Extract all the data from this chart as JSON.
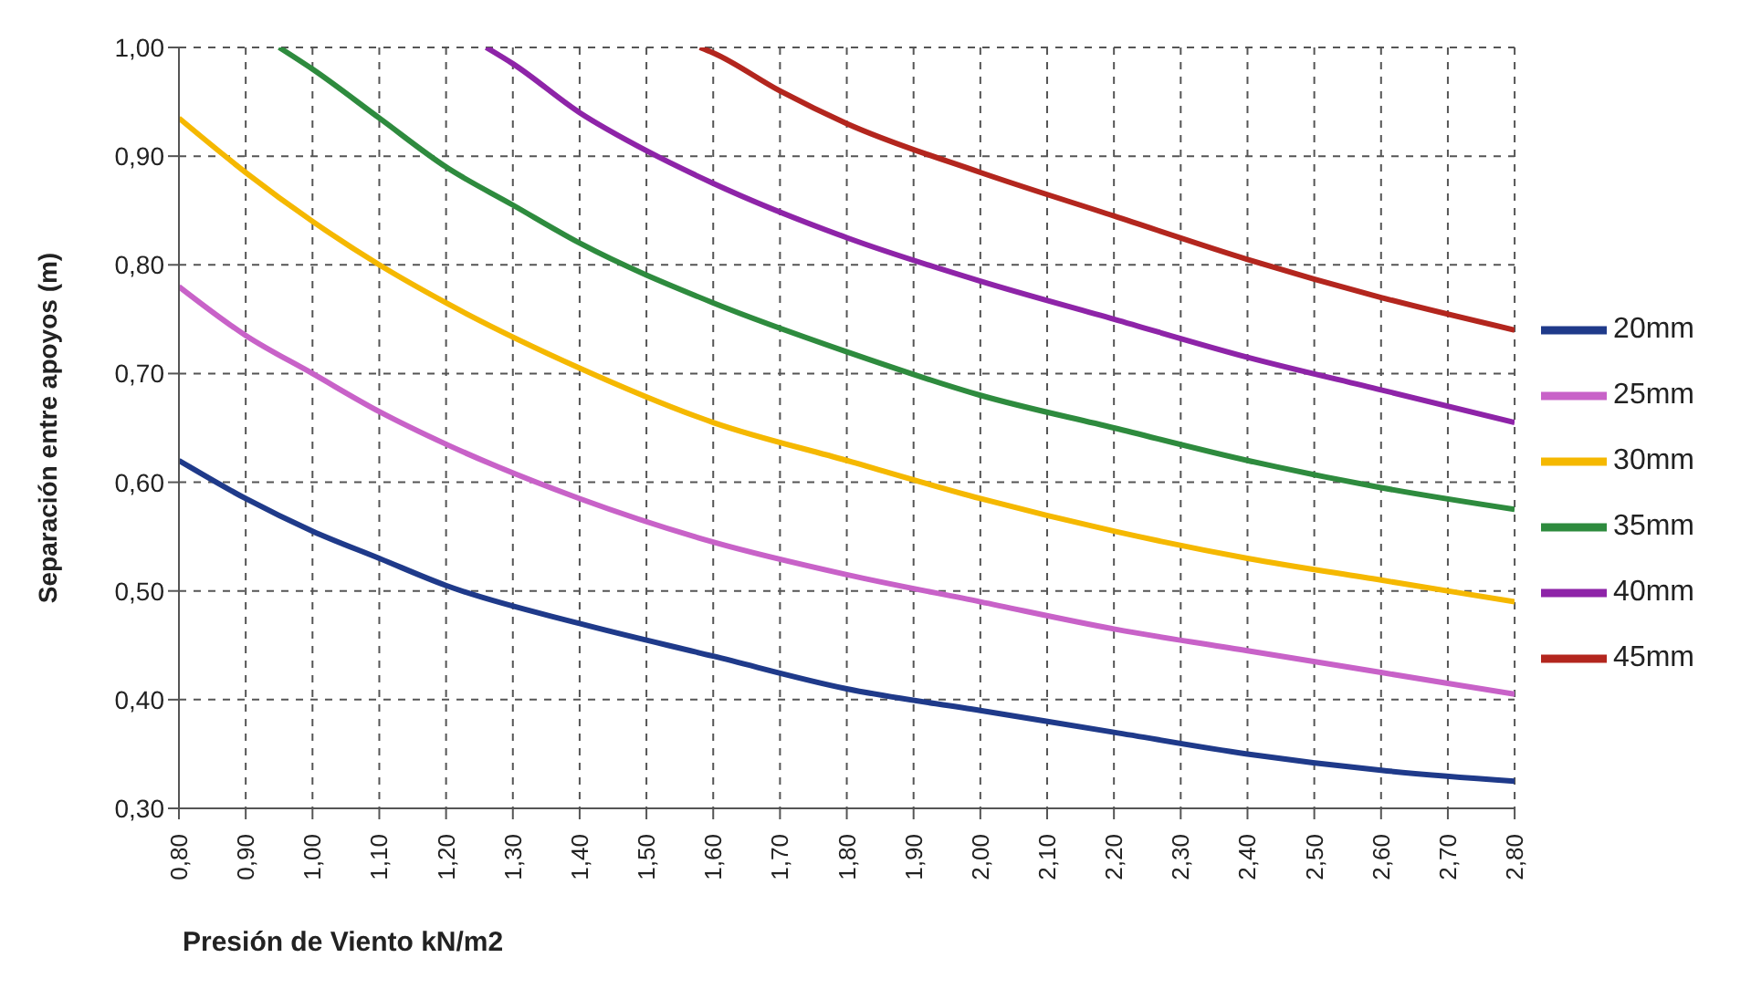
{
  "chart_data": {
    "type": "line",
    "xlabel": "Presión de Viento kN/m2",
    "ylabel": "Separación entre apoyos (m)",
    "xlim": [
      0.8,
      2.8
    ],
    "ylim": [
      0.3,
      1.0
    ],
    "xticks": [
      {
        "value": 0.8,
        "label": "0,80"
      },
      {
        "value": 0.9,
        "label": "0,90"
      },
      {
        "value": 1.0,
        "label": "1,00"
      },
      {
        "value": 1.1,
        "label": "1,10"
      },
      {
        "value": 1.2,
        "label": "1,20"
      },
      {
        "value": 1.3,
        "label": "1,30"
      },
      {
        "value": 1.4,
        "label": "1,40"
      },
      {
        "value": 1.5,
        "label": "1,50"
      },
      {
        "value": 1.6,
        "label": "1,60"
      },
      {
        "value": 1.7,
        "label": "1,70"
      },
      {
        "value": 1.8,
        "label": "1,80"
      },
      {
        "value": 1.9,
        "label": "1,90"
      },
      {
        "value": 2.0,
        "label": "2,00"
      },
      {
        "value": 2.1,
        "label": "2,10"
      },
      {
        "value": 2.2,
        "label": "2,20"
      },
      {
        "value": 2.3,
        "label": "2,30"
      },
      {
        "value": 2.4,
        "label": "2,40"
      },
      {
        "value": 2.5,
        "label": "2,50"
      },
      {
        "value": 2.6,
        "label": "2,60"
      },
      {
        "value": 2.7,
        "label": "2,70"
      },
      {
        "value": 2.8,
        "label": "2,80"
      }
    ],
    "yticks": [
      {
        "value": 0.3,
        "label": "0,30"
      },
      {
        "value": 0.4,
        "label": "0,40"
      },
      {
        "value": 0.5,
        "label": "0,50"
      },
      {
        "value": 0.6,
        "label": "0,60"
      },
      {
        "value": 0.7,
        "label": "0,70"
      },
      {
        "value": 0.8,
        "label": "0,80"
      },
      {
        "value": 0.9,
        "label": "0,90"
      },
      {
        "value": 1.0,
        "label": "1,00"
      }
    ],
    "grid": true,
    "legend": "right",
    "marker": "none",
    "line_style": "solid",
    "series": [
      {
        "name": "45mm",
        "color": "#b3261e",
        "x": [
          1.58,
          1.6,
          1.7,
          1.8,
          2.0,
          2.2,
          2.4,
          2.6,
          2.8
        ],
        "values": [
          1.0,
          0.995,
          0.96,
          0.93,
          0.885,
          0.845,
          0.805,
          0.77,
          0.74
        ]
      },
      {
        "name": "40mm",
        "color": "#8e24a8",
        "x": [
          1.26,
          1.3,
          1.4,
          1.5,
          1.6,
          1.8,
          2.0,
          2.2,
          2.4,
          2.6,
          2.8
        ],
        "values": [
          1.0,
          0.985,
          0.94,
          0.905,
          0.875,
          0.825,
          0.785,
          0.75,
          0.715,
          0.685,
          0.655
        ]
      },
      {
        "name": "35mm",
        "color": "#2e8b3e",
        "x": [
          0.95,
          1.0,
          1.1,
          1.2,
          1.3,
          1.4,
          1.6,
          1.8,
          2.0,
          2.2,
          2.4,
          2.6,
          2.8
        ],
        "values": [
          1.0,
          0.98,
          0.935,
          0.89,
          0.855,
          0.82,
          0.765,
          0.72,
          0.68,
          0.65,
          0.62,
          0.595,
          0.575
        ]
      },
      {
        "name": "30mm",
        "color": "#f5b800",
        "x": [
          0.8,
          0.9,
          1.0,
          1.1,
          1.2,
          1.4,
          1.6,
          1.8,
          2.0,
          2.2,
          2.4,
          2.6,
          2.8
        ],
        "values": [
          0.935,
          0.885,
          0.84,
          0.8,
          0.765,
          0.705,
          0.655,
          0.62,
          0.585,
          0.555,
          0.53,
          0.51,
          0.49
        ]
      },
      {
        "name": "25mm",
        "color": "#c862c8",
        "x": [
          0.8,
          0.9,
          1.0,
          1.1,
          1.2,
          1.4,
          1.6,
          1.8,
          2.0,
          2.2,
          2.4,
          2.6,
          2.8
        ],
        "values": [
          0.78,
          0.735,
          0.7,
          0.665,
          0.635,
          0.585,
          0.545,
          0.515,
          0.49,
          0.465,
          0.445,
          0.425,
          0.405
        ]
      },
      {
        "name": "20mm",
        "color": "#1f3a8a",
        "x": [
          0.8,
          0.9,
          1.0,
          1.1,
          1.2,
          1.4,
          1.6,
          1.8,
          2.0,
          2.2,
          2.4,
          2.6,
          2.8
        ],
        "values": [
          0.62,
          0.585,
          0.555,
          0.53,
          0.505,
          0.47,
          0.44,
          0.41,
          0.39,
          0.37,
          0.35,
          0.335,
          0.325
        ]
      }
    ]
  }
}
